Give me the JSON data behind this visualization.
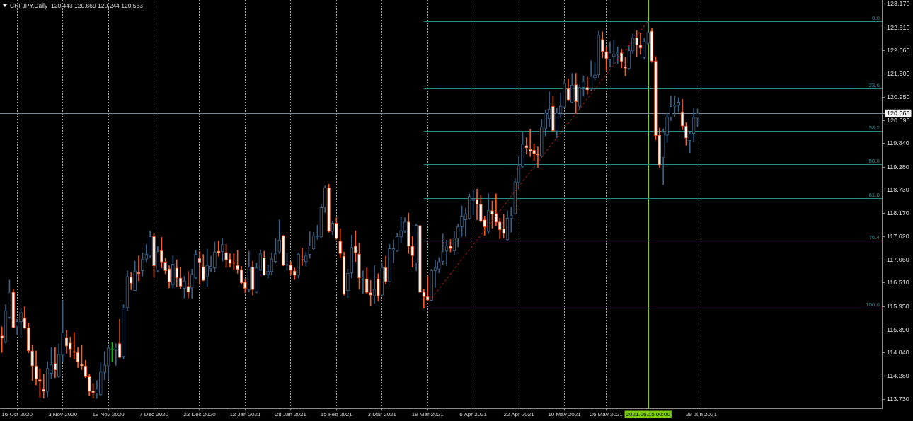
{
  "chart_data": {
    "type": "candlestick",
    "title": "CHFJPY,Daily  120.443 120.669 120.244 120.563",
    "categories": [
      null,
      null,
      null,
      null,
      "16 Oct 2020",
      null,
      null,
      null,
      null,
      null,
      null,
      null,
      null,
      null,
      null,
      null,
      "3 Nov 2020",
      null,
      null,
      null,
      null,
      null,
      null,
      null,
      null,
      null,
      null,
      null,
      "19 Nov 2020",
      null,
      null,
      null,
      null,
      null,
      null,
      null,
      null,
      null,
      null,
      null,
      "7 Dec 2020",
      null,
      null,
      null,
      null,
      null,
      null,
      null,
      null,
      null,
      null,
      null,
      "23 Dec 2020",
      null,
      null,
      null,
      null,
      null,
      null,
      null,
      null,
      null,
      null,
      null,
      "12 Jan 2021",
      null,
      null,
      null,
      null,
      null,
      null,
      null,
      null,
      null,
      null,
      null,
      "28 Jan 2021",
      null,
      null,
      null,
      null,
      null,
      null,
      null,
      null,
      null,
      null,
      null,
      "15 Feb 2021",
      null,
      null,
      null,
      null,
      null,
      null,
      null,
      null,
      null,
      null,
      null,
      "3 Mar 2021",
      null,
      null,
      null,
      null,
      null,
      null,
      null,
      null,
      null,
      null,
      null,
      "19 Mar 2021",
      null,
      null,
      null,
      null,
      null,
      null,
      null,
      null,
      null,
      null,
      null,
      "6 Apr 2021",
      null,
      null,
      null,
      null,
      null,
      null,
      null,
      null,
      null,
      null,
      null,
      "22 Apr 2021",
      null,
      null,
      null,
      null,
      null,
      null,
      null,
      null,
      null,
      null,
      null,
      "10 May 2021",
      null,
      null,
      null,
      null,
      null,
      null,
      null,
      null,
      null,
      null,
      "26 May 2021",
      null,
      null,
      null,
      null,
      null,
      null,
      null,
      null,
      null,
      null,
      "2021.06.15 00:00",
      null,
      null,
      null,
      null,
      null,
      null,
      null,
      null,
      null,
      null,
      null,
      null,
      null,
      "29 Jun 2021",
      null,
      null,
      null,
      null,
      null,
      null,
      null,
      null,
      null,
      null,
      null,
      null,
      null,
      null,
      null,
      null,
      null,
      null,
      null,
      null,
      null,
      null,
      null,
      null,
      null,
      null,
      null,
      null,
      null,
      null,
      null,
      null,
      null,
      null,
      null,
      null,
      null,
      null,
      null,
      null,
      null,
      null,
      null,
      null,
      null,
      null,
      null
    ],
    "series": [
      {
        "ohlc": [
          [
            115.25,
            115.46,
            114.85,
            115.19
          ],
          [
            115.1,
            115.99,
            115.07,
            115.85
          ],
          [
            115.69,
            116.58,
            115.66,
            116.29
          ],
          [
            116.29,
            116.37,
            115.43,
            115.44
          ],
          [
            115.46,
            115.64,
            115.28,
            115.59
          ],
          [
            115.58,
            115.91,
            115.2,
            115.8
          ],
          [
            115.67,
            115.94,
            115.42,
            115.43
          ],
          [
            115.44,
            115.56,
            114.84,
            114.89
          ],
          [
            114.89,
            115.02,
            114.18,
            114.53
          ],
          [
            114.53,
            114.89,
            114.07,
            114.21
          ],
          [
            114.2,
            114.46,
            113.78,
            114.16
          ],
          [
            113.97,
            114.34,
            113.76,
            113.92
          ],
          [
            113.92,
            114.63,
            113.79,
            114.47
          ],
          [
            114.35,
            114.97,
            114.22,
            114.56
          ],
          [
            114.59,
            114.97,
            114.25,
            114.43
          ],
          [
            114.27,
            115.06,
            114.25,
            114.8
          ],
          [
            114.78,
            116.09,
            114.62,
            115.33
          ],
          [
            115.21,
            115.38,
            114.83,
            115
          ],
          [
            115.08,
            115.22,
            114.74,
            114.93
          ],
          [
            114.87,
            115.33,
            114.69,
            114.85
          ],
          [
            114.85,
            114.97,
            114.49,
            114.62
          ],
          [
            114.56,
            115.02,
            114.44,
            114.53
          ],
          [
            114.53,
            114.66,
            114.25,
            114.27
          ],
          [
            114.27,
            114.34,
            113.81,
            113.92
          ],
          [
            113.93,
            114.1,
            113.76,
            113.89
          ],
          [
            113.87,
            114.18,
            113.75,
            113.98
          ],
          [
            113.84,
            114.6,
            113.81,
            114.38
          ],
          [
            114.37,
            114.87,
            114.2,
            114.55
          ],
          [
            114.53,
            115.01,
            114.2,
            114.96
          ],
          [
            114.92,
            115.09,
            114.62,
            114.92
          ],
          [
            114.92,
            115.06,
            114.54,
            114.97
          ],
          [
            115.06,
            115.64,
            114.72,
            114.73
          ],
          [
            114.75,
            115.99,
            114.7,
            115.91
          ],
          [
            115.92,
            116.8,
            115.85,
            116.67
          ],
          [
            116.65,
            116.76,
            116.35,
            116.5
          ],
          [
            116.33,
            117.03,
            116.33,
            116.8
          ],
          [
            116.76,
            117.16,
            116.56,
            116.73
          ],
          [
            116.8,
            117.23,
            116.67,
            117.08
          ],
          [
            117.08,
            117.43,
            117.02,
            117.2
          ],
          [
            117.15,
            117.75,
            117.12,
            117.62
          ],
          [
            117.62,
            117.7,
            116.64,
            116.92
          ],
          [
            116.82,
            117.38,
            116.78,
            117.26
          ],
          [
            117.28,
            117.6,
            116.87,
            117.01
          ],
          [
            117.01,
            117.1,
            116.73,
            116.8
          ],
          [
            116.85,
            116.92,
            116.39,
            116.53
          ],
          [
            116.46,
            117.16,
            116.39,
            116.96
          ],
          [
            116.87,
            117.06,
            116.42,
            116.63
          ],
          [
            116.63,
            116.89,
            116.38,
            116.43
          ],
          [
            116.38,
            116.67,
            116.15,
            116.56
          ],
          [
            116.43,
            116.78,
            116.15,
            116.29
          ],
          [
            116.39,
            116.84,
            116.14,
            116.72
          ],
          [
            116.63,
            117.29,
            116.6,
            117.2
          ],
          [
            117.1,
            117.26,
            116.47,
            117
          ],
          [
            116.9,
            117.19,
            116.56,
            116.57
          ],
          [
            116.67,
            117.32,
            116.42,
            116.93
          ],
          [
            116.85,
            117.15,
            116.78,
            116.91
          ],
          [
            116.87,
            117.49,
            116.78,
            117.25
          ],
          [
            117.27,
            117.51,
            117.15,
            117.23
          ],
          [
            117.26,
            117.58,
            117.03,
            117.43
          ],
          [
            117.24,
            117.43,
            116.88,
            117.06
          ],
          [
            117.08,
            117.21,
            116.89,
            116.98
          ],
          [
            117,
            117.21,
            116.84,
            116.98
          ],
          [
            116.93,
            117.29,
            116.74,
            116.83
          ],
          [
            116.82,
            116.91,
            116.48,
            116.51
          ],
          [
            116.53,
            116.59,
            116.28,
            116.38
          ],
          [
            116.34,
            117.27,
            116.29,
            116.89
          ],
          [
            116.89,
            117.03,
            116.22,
            116.35
          ],
          [
            116.3,
            116.99,
            116.27,
            116.87
          ],
          [
            116.82,
            117.3,
            116.8,
            117.21
          ],
          [
            117.11,
            117.27,
            116.69,
            116.7
          ],
          [
            116.71,
            116.94,
            116.63,
            116.79
          ],
          [
            116.78,
            117.23,
            116.7,
            117.08
          ],
          [
            117.02,
            117.57,
            116.99,
            117.21
          ],
          [
            117.25,
            118.02,
            117.21,
            117.54
          ],
          [
            117.64,
            117.65,
            116.92,
            116.93
          ],
          [
            116.93,
            117.23,
            116.81,
            116.95
          ],
          [
            116.94,
            117.02,
            116.71,
            116.81
          ],
          [
            116.8,
            116.87,
            116.59,
            116.69
          ],
          [
            116.69,
            117.23,
            116.63,
            117.2
          ],
          [
            117.07,
            117.34,
            116.93,
            117.05
          ],
          [
            117.02,
            117.25,
            116.91,
            117.16
          ],
          [
            117.19,
            117.74,
            117.1,
            117.4
          ],
          [
            117.32,
            117.72,
            117.3,
            117.64
          ],
          [
            117.61,
            117.89,
            117.55,
            117.64
          ],
          [
            117.61,
            118.4,
            117.59,
            118.31
          ],
          [
            118.31,
            118.83,
            118.19,
            118.79
          ],
          [
            118.79,
            118.87,
            117.72,
            117.75
          ],
          [
            117.74,
            117.99,
            117.66,
            117.94
          ],
          [
            117.94,
            118.07,
            117.55,
            117.57
          ],
          [
            117.51,
            117.81,
            117.12,
            117.21
          ],
          [
            117.15,
            117.25,
            116.22,
            116.24
          ],
          [
            116.33,
            116.84,
            116.16,
            116.74
          ],
          [
            116.75,
            117.65,
            116.63,
            117.36
          ],
          [
            117.39,
            117.76,
            117.02,
            117.23
          ],
          [
            117.2,
            117.46,
            116.36,
            116.63
          ],
          [
            116.62,
            116.8,
            116.26,
            116.64
          ],
          [
            116.61,
            116.87,
            116.25,
            116.28
          ],
          [
            116.28,
            116.57,
            115.97,
            116.22
          ],
          [
            116.2,
            116.93,
            116.02,
            116.36
          ],
          [
            116.61,
            116.73,
            116.08,
            116.2
          ],
          [
            116.22,
            116.98,
            116.19,
            116.88
          ],
          [
            116.88,
            117.15,
            116.48,
            116.54
          ],
          [
            116.54,
            117.43,
            116.53,
            117.33
          ],
          [
            117.29,
            117.54,
            116.99,
            117.33
          ],
          [
            117.27,
            117.7,
            117.26,
            117.62
          ],
          [
            117.61,
            118.09,
            117.46,
            117.76
          ],
          [
            117.75,
            118.07,
            117.71,
            117.97
          ],
          [
            117.97,
            118.18,
            117.21,
            117.39
          ],
          [
            117.39,
            117.62,
            116.89,
            117.16
          ],
          [
            116.99,
            117.92,
            116.8,
            117.89
          ],
          [
            117.88,
            117.89,
            116.28,
            116.29
          ],
          [
            116.29,
            116.36,
            115.91,
            116.18
          ],
          [
            116.18,
            116.67,
            116.08,
            116.1
          ],
          [
            116.09,
            116.84,
            116.08,
            116.81
          ],
          [
            116.8,
            117.05,
            116.4,
            116.87
          ],
          [
            116.84,
            117.12,
            116.75,
            117.02
          ],
          [
            117.02,
            117.68,
            116.95,
            117.27
          ],
          [
            117.27,
            117.54,
            116.92,
            117.4
          ],
          [
            117.39,
            117.55,
            117.25,
            117.33
          ],
          [
            117.27,
            117.74,
            117.19,
            117.59
          ],
          [
            117.57,
            117.92,
            117.37,
            117.85
          ],
          [
            117.85,
            118.35,
            117.62,
            118.11
          ],
          [
            118.02,
            118.3,
            117.62,
            118.16
          ],
          [
            118.05,
            118.64,
            118.03,
            118.58
          ],
          [
            118.48,
            118.72,
            118.13,
            118.51
          ],
          [
            118.51,
            118.75,
            118.02,
            118.38
          ],
          [
            118.39,
            118.61,
            117.96,
            117.99
          ],
          [
            118.02,
            118.11,
            117.65,
            117.85
          ],
          [
            117.74,
            118.64,
            117.69,
            118.24
          ],
          [
            118.24,
            118.47,
            117.82,
            118.15
          ],
          [
            118.17,
            118.64,
            117.88,
            117.96
          ],
          [
            117.97,
            118.06,
            117.57,
            117.78
          ],
          [
            117.81,
            118.15,
            117.58,
            117.69
          ],
          [
            117.54,
            118.23,
            117.51,
            118.06
          ],
          [
            118.05,
            118.32,
            117.72,
            118.13
          ],
          [
            118.16,
            119.01,
            118.15,
            118.93
          ],
          [
            118.92,
            119.53,
            118.75,
            119.31
          ],
          [
            119.28,
            120.11,
            119.27,
            119.83
          ],
          [
            119.79,
            119.98,
            119.59,
            119.74
          ],
          [
            119.7,
            120.18,
            119.53,
            119.66
          ],
          [
            119.68,
            119.83,
            119.44,
            119.6
          ],
          [
            119.6,
            119.76,
            119.27,
            119.57
          ],
          [
            119.53,
            120.42,
            119.52,
            120.24
          ],
          [
            120.19,
            120.63,
            120.02,
            120.57
          ],
          [
            120.43,
            121.08,
            120.24,
            120.66
          ],
          [
            120.73,
            120.97,
            120.14,
            120.15
          ],
          [
            120.14,
            120.69,
            119.98,
            120.57
          ],
          [
            120.57,
            121.05,
            120.46,
            120.73
          ],
          [
            120.71,
            121.36,
            120.7,
            121.28
          ],
          [
            121.15,
            121.39,
            120.86,
            120.88
          ],
          [
            120.83,
            121.52,
            120.81,
            121.24
          ],
          [
            121.25,
            121.52,
            120.55,
            120.84
          ],
          [
            120.73,
            121.24,
            120.66,
            121.18
          ],
          [
            121.18,
            121.46,
            120.97,
            121.33
          ],
          [
            121.18,
            121.43,
            121.02,
            121.12
          ],
          [
            121.14,
            121.82,
            121.11,
            121.45
          ],
          [
            121.41,
            121.77,
            121.36,
            121.48
          ],
          [
            121.48,
            122.53,
            121.42,
            122.43
          ],
          [
            122.33,
            122.51,
            121.89,
            122.04
          ],
          [
            122.04,
            122.15,
            121.59,
            121.87
          ],
          [
            121.84,
            122.27,
            121.67,
            122.01
          ],
          [
            121.92,
            122.32,
            121.73,
            121.98
          ],
          [
            121.98,
            122.15,
            121.75,
            122.01
          ],
          [
            122.01,
            122.1,
            121.65,
            121.8
          ],
          [
            121.68,
            121.91,
            121.46,
            121.64
          ],
          [
            121.63,
            122.18,
            121.61,
            122.06
          ],
          [
            122.05,
            122.46,
            121.99,
            122.36
          ],
          [
            122.37,
            122.54,
            121.92,
            122.19
          ],
          [
            122.19,
            122.48,
            121.97,
            122.12
          ],
          [
            121.89,
            122.36,
            121.86,
            122.29
          ],
          [
            122.23,
            122.77,
            122.2,
            122.5
          ],
          [
            122.53,
            122.59,
            121.78,
            121.81
          ],
          [
            121.81,
            121.92,
            119.93,
            120.03
          ],
          [
            120.04,
            120.21,
            119.27,
            119.33
          ],
          [
            119.5,
            120.19,
            118.86,
            120.11
          ],
          [
            120.04,
            120.57,
            119.87,
            120.47
          ],
          [
            120.46,
            120.98,
            120.39,
            120.73
          ],
          [
            120.73,
            120.98,
            120.49,
            120.76
          ],
          [
            120.75,
            120.94,
            120.6,
            120.83
          ],
          [
            120.6,
            120.9,
            120.17,
            120.26
          ],
          [
            120.26,
            120.34,
            119.8,
            119.97
          ],
          [
            119.91,
            120.12,
            119.62,
            120.07
          ],
          [
            120.08,
            120.69,
            119.89,
            120.47
          ],
          [
            120.443,
            120.669,
            120.244,
            120.563
          ],
          null,
          null,
          null,
          null,
          null,
          null,
          null,
          null,
          null,
          null,
          null,
          null,
          null,
          null,
          null,
          null,
          null,
          null,
          null,
          null,
          null,
          null,
          null,
          null,
          null,
          null,
          null,
          null,
          null,
          null,
          null,
          null,
          null,
          null,
          null,
          null,
          null,
          null,
          null,
          null,
          null,
          null,
          null,
          null,
          null,
          null,
          null,
          null
        ],
        "colors": [
          "#ff5a1e",
          "#3b6286",
          "#3b6286",
          "#ff5a1e",
          "#3b6286",
          "#3b6286",
          "#ff5a1e",
          "#ff5a1e",
          "#ff5a1e",
          "#ff5a1e",
          "#ff5a1e",
          "#ff5a1e",
          "#3b6286",
          "#3b6286",
          "#ff5a1e",
          "#3b6286",
          "#3b6286",
          "#ff5a1e",
          "#ff5a1e",
          "#ff5a1e",
          "#ff5a1e",
          "#ff5a1e",
          "#ff5a1e",
          "#ff5a1e",
          "#ff5a1e",
          "#3b6286",
          "#3b6286",
          "#3b6286",
          "#3b6286",
          "#00c000",
          "#3b6286",
          "#ff5a1e",
          "#3b6286",
          "#3b6286",
          "#ff5a1e",
          "#3b6286",
          "#ff5a1e",
          "#3b6286",
          "#3b6286",
          "#3b6286",
          "#ff5a1e",
          "#3b6286",
          "#ff5a1e",
          "#ff5a1e",
          "#ff5a1e",
          "#3b6286",
          "#ff5a1e",
          "#ff5a1e",
          "#3b6286",
          "#ff5a1e",
          "#3b6286",
          "#3b6286",
          "#ff5a1e",
          "#ff5a1e",
          "#3b6286",
          "#3b6286",
          "#3b6286",
          "#ff5a1e",
          "#3b6286",
          "#ff5a1e",
          "#ff5a1e",
          "#ff5a1e",
          "#ff5a1e",
          "#ff5a1e",
          "#ff5a1e",
          "#3b6286",
          "#ff5a1e",
          "#3b6286",
          "#3b6286",
          "#ff5a1e",
          "#3b6286",
          "#3b6286",
          "#3b6286",
          "#3b6286",
          "#ff5a1e",
          "#3b6286",
          "#ff5a1e",
          "#ff5a1e",
          "#3b6286",
          "#ff5a1e",
          "#3b6286",
          "#3b6286",
          "#3b6286",
          "#3b6286",
          "#3b6286",
          "#3b6286",
          "#ff5a1e",
          "#3b6286",
          "#ff5a1e",
          "#ff5a1e",
          "#ff5a1e",
          "#3b6286",
          "#3b6286",
          "#ff5a1e",
          "#ff5a1e",
          "#3b6286",
          "#ff5a1e",
          "#ff5a1e",
          "#3b6286",
          "#ff5a1e",
          "#3b6286",
          "#ff5a1e",
          "#3b6286",
          "#3b6286",
          "#3b6286",
          "#3b6286",
          "#3b6286",
          "#ff5a1e",
          "#ff5a1e",
          "#3b6286",
          "#ff5a1e",
          "#ff5a1e",
          "#ff5a1e",
          "#3b6286",
          "#3b6286",
          "#3b6286",
          "#3b6286",
          "#3b6286",
          "#ff5a1e",
          "#3b6286",
          "#3b6286",
          "#3b6286",
          "#3b6286",
          "#3b6286",
          "#3b6286",
          "#ff5a1e",
          "#ff5a1e",
          "#ff5a1e",
          "#3b6286",
          "#ff5a1e",
          "#ff5a1e",
          "#ff5a1e",
          "#ff5a1e",
          "#3b6286",
          "#3b6286",
          "#3b6286",
          "#3b6286",
          "#3b6286",
          "#ff5a1e",
          "#ff5a1e",
          "#ff5a1e",
          "#ff5a1e",
          "#3b6286",
          "#3b6286",
          "#3b6286",
          "#ff5a1e",
          "#3b6286",
          "#3b6286",
          "#3b6286",
          "#ff5a1e",
          "#3b6286",
          "#ff5a1e",
          "#3b6286",
          "#3b6286",
          "#ff5a1e",
          "#3b6286",
          "#3b6286",
          "#3b6286",
          "#ff5a1e",
          "#ff5a1e",
          "#3b6286",
          "#3b6286",
          "#3b6286",
          "#ff5a1e",
          "#ff5a1e",
          "#3b6286",
          "#3b6286",
          "#ff5a1e",
          "#ff5a1e",
          "#3b6286",
          "#3b6286",
          "#ff5a1e",
          "#ff5a1e",
          "#ff5a1e",
          "#3b6286",
          "#3b6286",
          "#3b6286",
          "#3b6286",
          "#3b6286",
          "#ff5a1e",
          "#ff5a1e",
          "#3b6286",
          "#3b6286",
          "#3b6286",
          null,
          null,
          null,
          null,
          null,
          null,
          null,
          null,
          null,
          null,
          null,
          null,
          null,
          null,
          null,
          null,
          null,
          null,
          null,
          null,
          null,
          null,
          null,
          null,
          null,
          null,
          null,
          null,
          null,
          null,
          null,
          null,
          null,
          null,
          null,
          null,
          null,
          null,
          null,
          null,
          null,
          null,
          null,
          null,
          null,
          null,
          null,
          null
        ]
      },
      {
        "type": "line",
        "color": "#c81e1e",
        "line_style": "dashed",
        "values": [
          null,
          null,
          null,
          null,
          null,
          null,
          null,
          null,
          null,
          null,
          null,
          null,
          null,
          null,
          null,
          null,
          null,
          null,
          null,
          null,
          null,
          null,
          null,
          null,
          null,
          null,
          null,
          null,
          null,
          null,
          null,
          null,
          null,
          null,
          null,
          null,
          null,
          null,
          null,
          null,
          null,
          null,
          null,
          null,
          null,
          null,
          null,
          null,
          null,
          null,
          null,
          null,
          null,
          null,
          null,
          null,
          null,
          null,
          null,
          null,
          null,
          null,
          null,
          null,
          null,
          null,
          null,
          null,
          null,
          null,
          null,
          null,
          null,
          null,
          null,
          null,
          null,
          null,
          null,
          null,
          null,
          null,
          null,
          null,
          null,
          null,
          null,
          null,
          null,
          null,
          null,
          null,
          null,
          null,
          null,
          null,
          null,
          null,
          null,
          null,
          null,
          null,
          null,
          null,
          null,
          null,
          null,
          null,
          null,
          null,
          null,
          115.91,
          null,
          null,
          null,
          null,
          null,
          null,
          null,
          null,
          null,
          null,
          null,
          null,
          null,
          null,
          null,
          null,
          null,
          null,
          null,
          null,
          null,
          null,
          null,
          null,
          null,
          null,
          null,
          null,
          null,
          null,
          null,
          null,
          null,
          null,
          null,
          null,
          null,
          null,
          null,
          null,
          null,
          null,
          null,
          null,
          null,
          null,
          null,
          null,
          null,
          null,
          null,
          null,
          null,
          null,
          null,
          null,
          null,
          null,
          122.77,
          null,
          null,
          null,
          null,
          null,
          null,
          null,
          null,
          null,
          null,
          null,
          null,
          null,
          null,
          null,
          null,
          null,
          null,
          null,
          null,
          null,
          null,
          null,
          null,
          null,
          null,
          null,
          null,
          null,
          null,
          null,
          null,
          null,
          null,
          null,
          null,
          null,
          null,
          null,
          null,
          null,
          null,
          null,
          null,
          null,
          null,
          null,
          null,
          null,
          null,
          null,
          null,
          null,
          null,
          null,
          null,
          null,
          null,
          null,
          null,
          null
        ]
      }
    ],
    "ylim": [
      113.51,
      123.27
    ],
    "yticks": [
      {
        "value": 123.17,
        "label": "123.170"
      },
      {
        "value": 122.61,
        "label": "122.610"
      },
      {
        "value": 122.06,
        "label": "122.060"
      },
      {
        "value": 121.5,
        "label": "121.500"
      },
      {
        "value": 120.95,
        "label": "120.950"
      },
      {
        "value": 120.563,
        "label": "120.563"
      },
      {
        "value": 120.39,
        "label": "120.390"
      },
      {
        "value": 119.84,
        "label": "119.840"
      },
      {
        "value": 119.28,
        "label": "119.280"
      },
      {
        "value": 118.73,
        "label": "118.730"
      },
      {
        "value": 118.17,
        "label": "118.170"
      },
      {
        "value": 117.62,
        "label": "117.620"
      },
      {
        "value": 117.06,
        "label": "117.060"
      },
      {
        "value": 116.51,
        "label": "116.510"
      },
      {
        "value": 115.95,
        "label": "115.950"
      },
      {
        "value": 115.39,
        "label": "115.390"
      },
      {
        "value": 114.84,
        "label": "114.840"
      },
      {
        "value": 114.28,
        "label": "114.280"
      },
      {
        "value": 113.73,
        "label": "113.730"
      }
    ],
    "ref_lines": [
      {
        "axis": "x",
        "value": "2021.06.15 00:00",
        "color": "#7ccd10"
      },
      {
        "axis": "y",
        "value": 120.563,
        "color": "#778899"
      },
      {
        "axis": "y",
        "value": 122.77,
        "color": "#2a8a8a"
      },
      {
        "axis": "y",
        "value": 121.15,
        "color": "#2a8a8a"
      },
      {
        "axis": "y",
        "value": 120.15,
        "color": "#2a8a8a"
      },
      {
        "axis": "y",
        "value": 119.34,
        "color": "#2a8a8a"
      },
      {
        "axis": "y",
        "value": 118.53,
        "color": "#2a8a8a"
      },
      {
        "axis": "y",
        "value": 117.53,
        "color": "#2a8a8a"
      },
      {
        "axis": "y",
        "value": 115.91,
        "color": "#2a8a8a"
      }
    ],
    "annotations": [
      {
        "text": "0.0",
        "y": 122.77
      },
      {
        "text": "23.6",
        "y": 121.15
      },
      {
        "text": "38.2",
        "y": 120.15
      },
      {
        "text": "50.0",
        "y": 119.34
      },
      {
        "text": "61.8",
        "y": 118.53
      },
      {
        "text": "76.4",
        "y": 117.53
      },
      {
        "text": "100.0",
        "y": 115.91
      }
    ],
    "grid": "x"
  }
}
